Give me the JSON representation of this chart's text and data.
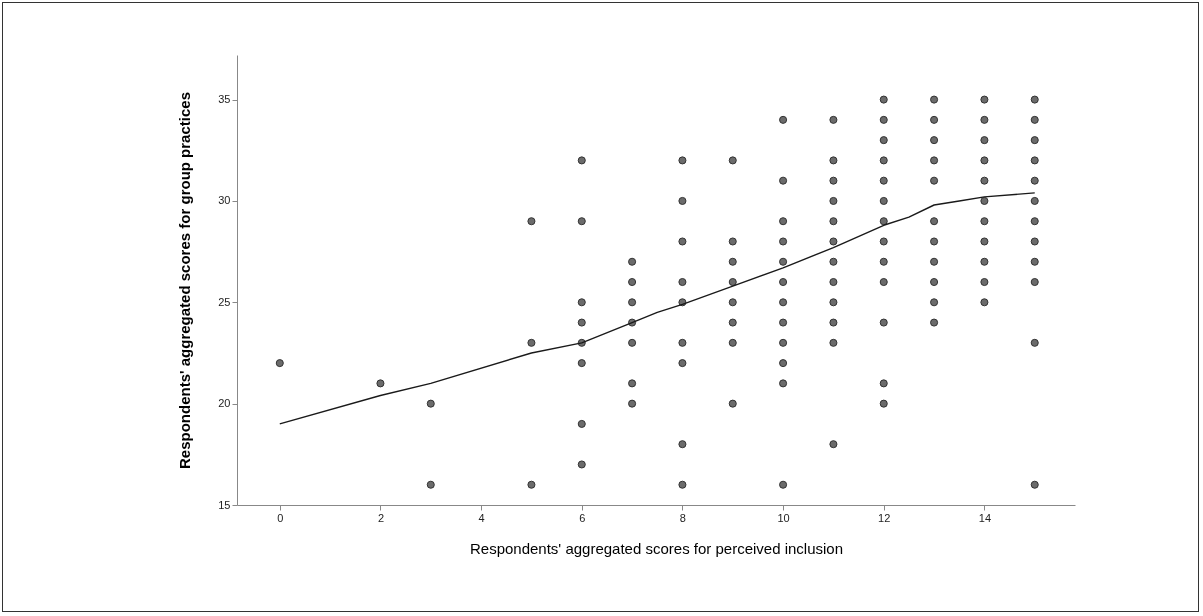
{
  "chart_data": {
    "type": "scatter",
    "xlabel": "Respondents' aggregated scores for perceived inclusion",
    "ylabel": "Respondents' aggregated scores for group practices",
    "xlim": [
      -0.85,
      15.8
    ],
    "ylim": [
      15,
      37.2
    ],
    "xticks": [
      0,
      2,
      4,
      6,
      8,
      10,
      12,
      14
    ],
    "yticks": [
      15,
      20,
      25,
      30,
      35
    ],
    "grid": false,
    "marker": "circle",
    "series": [
      {
        "color": "#6b6b6b",
        "x": [
          0,
          2,
          3,
          3,
          5,
          5,
          5,
          6,
          6,
          6,
          6,
          6,
          6,
          6,
          6,
          7,
          7,
          7,
          7,
          7,
          7,
          7,
          8,
          8,
          8,
          8,
          8,
          8,
          8,
          8,
          8,
          9,
          9,
          9,
          9,
          9,
          9,
          9,
          9,
          10,
          10,
          10,
          10,
          10,
          10,
          10,
          10,
          10,
          10,
          10,
          10,
          11,
          11,
          11,
          11,
          11,
          11,
          11,
          11,
          11,
          11,
          11,
          11,
          12,
          12,
          12,
          12,
          12,
          12,
          12,
          12,
          12,
          12,
          12,
          12,
          12,
          13,
          13,
          13,
          13,
          13,
          13,
          13,
          13,
          13,
          13,
          13,
          14,
          14,
          14,
          14,
          14,
          14,
          14,
          14,
          14,
          14,
          14,
          15,
          15,
          15,
          15,
          15,
          15,
          15,
          15,
          15,
          15,
          15,
          15
        ],
        "values": [
          22,
          21,
          20,
          16,
          29,
          23,
          16,
          32,
          29,
          25,
          24,
          23,
          22,
          19,
          17,
          27,
          26,
          25,
          24,
          23,
          21,
          20,
          32,
          30,
          28,
          26,
          25,
          23,
          22,
          18,
          16,
          32,
          28,
          27,
          26,
          25,
          24,
          23,
          20,
          34,
          31,
          29,
          28,
          27,
          26,
          25,
          24,
          23,
          22,
          21,
          16,
          34,
          32,
          31,
          30,
          29,
          28,
          27,
          26,
          25,
          24,
          23,
          18,
          35,
          34,
          33,
          32,
          31,
          30,
          29,
          28,
          27,
          26,
          24,
          21,
          20,
          35,
          34,
          33,
          32,
          31,
          29,
          28,
          27,
          26,
          25,
          24,
          35,
          34,
          33,
          32,
          31,
          30,
          29,
          28,
          27,
          26,
          25,
          35,
          34,
          33,
          32,
          31,
          30,
          29,
          28,
          27,
          26,
          23,
          16
        ]
      },
      {
        "type": "line",
        "color": "#1a1a1a",
        "line_style": "solid",
        "marker": "none",
        "x": [
          0,
          2,
          3,
          5,
          6,
          7,
          7.5,
          8,
          9,
          10,
          11,
          12,
          12.5,
          13,
          13.5,
          14,
          15
        ],
        "values": [
          19.0,
          20.4,
          21.0,
          22.5,
          23.0,
          24.0,
          24.5,
          24.9,
          25.8,
          26.7,
          27.7,
          28.8,
          29.2,
          29.8,
          30.0,
          30.2,
          30.4
        ]
      }
    ]
  }
}
